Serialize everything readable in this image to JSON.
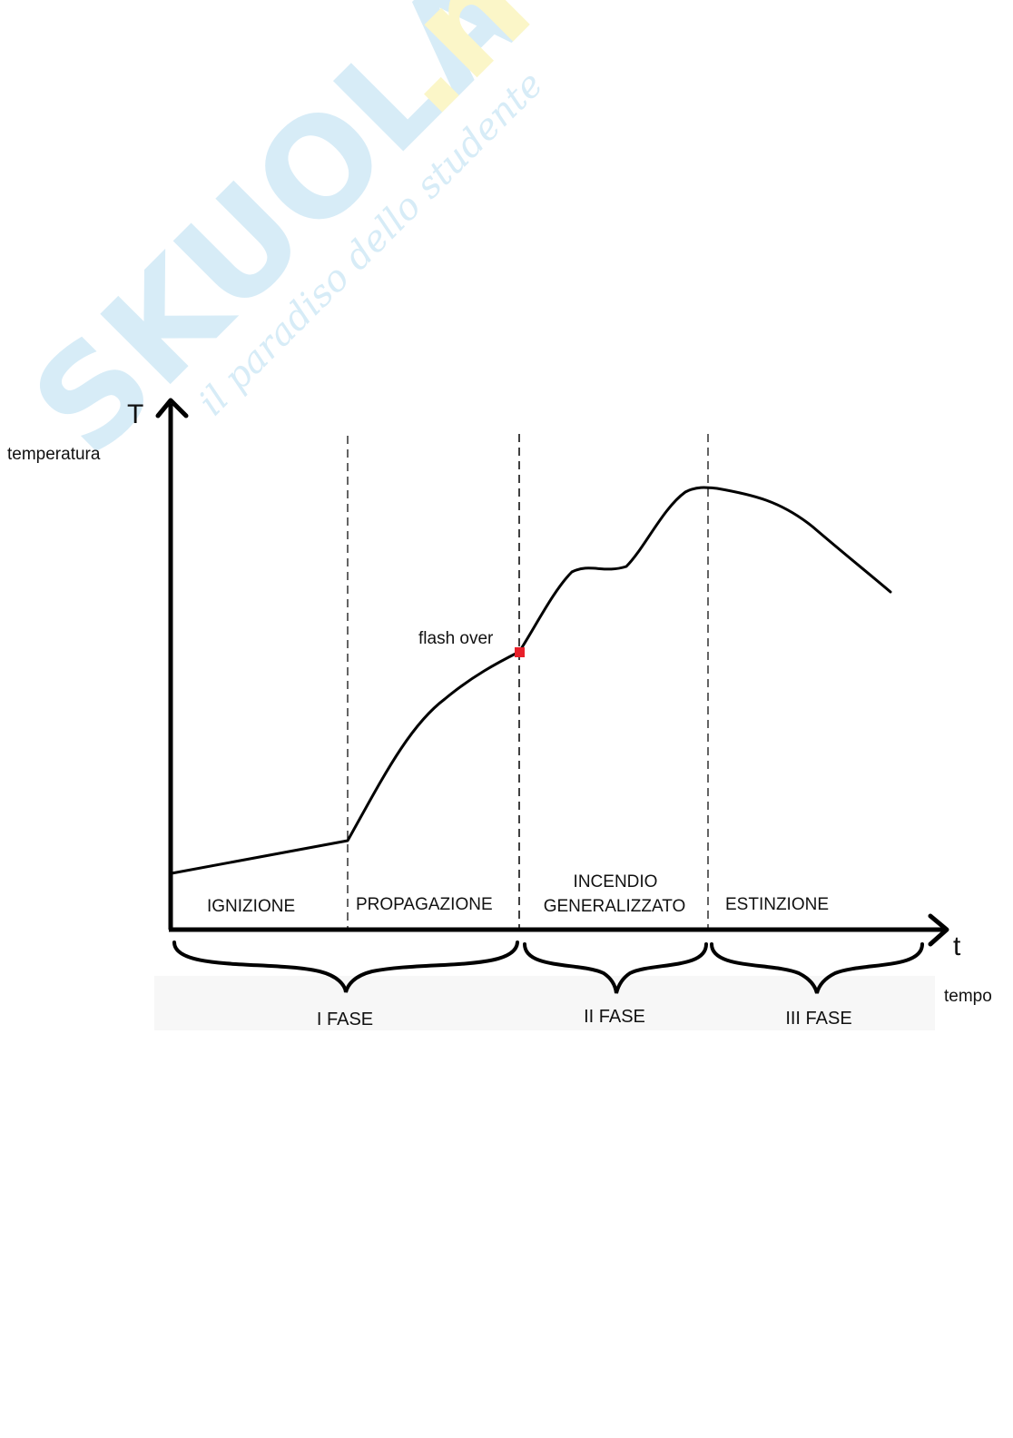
{
  "watermark": {
    "brand_main": "SKUOLA",
    "brand_suffix": ".net",
    "tagline": "il paradiso dello studente",
    "color_blue": "#d7ecf7",
    "color_yellow": "#fbf6c8"
  },
  "axes": {
    "y_letter": "T",
    "y_label": "temperatura",
    "x_letter": "t",
    "x_label": "tempo"
  },
  "phases": [
    {
      "id": "ignizione",
      "lines": [
        "IGNIZIONE"
      ]
    },
    {
      "id": "propagazione",
      "lines": [
        "PROPAGAZIONE"
      ]
    },
    {
      "id": "incendio-generalizzato",
      "lines": [
        "INCENDIO",
        "GENERALIZZATO"
      ]
    },
    {
      "id": "estinzione",
      "lines": [
        "ESTINZIONE"
      ]
    }
  ],
  "fasi": [
    "I FASE",
    "II FASE",
    "III FASE"
  ],
  "annotation": {
    "text": "flash over",
    "marker_color": "#e8202a"
  },
  "colors": {
    "ink": "#111111",
    "axis": "#000000"
  }
}
